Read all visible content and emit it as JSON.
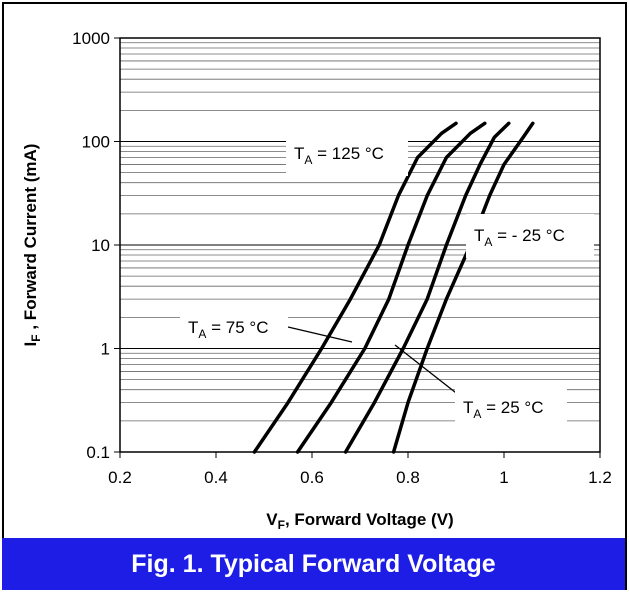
{
  "caption": "Fig. 1.  Typical Forward Voltage",
  "chart_data": {
    "type": "line",
    "title": "",
    "xlabel": {
      "main": "V",
      "sub": "F",
      "rest": ", Forward Voltage (V)"
    },
    "ylabel": {
      "main": "I",
      "sub": "F",
      "rest": " , Forward Current (mA)"
    },
    "xlim": [
      0.2,
      1.2
    ],
    "ylim": [
      0.1,
      1000
    ],
    "yscale": "log",
    "grid": "horizontal",
    "x_ticks": [
      "0.2",
      "0.4",
      "0.6",
      "0.8",
      "1",
      "1.2"
    ],
    "y_ticks": [
      "0.1",
      "1",
      "10",
      "100",
      "1000"
    ],
    "series": [
      {
        "name": "TA = 125 °C",
        "x": [
          0.48,
          0.55,
          0.62,
          0.68,
          0.74,
          0.78,
          0.82,
          0.87,
          0.9
        ],
        "y": [
          0.1,
          0.3,
          1,
          3,
          10,
          30,
          70,
          120,
          150
        ]
      },
      {
        "name": "TA = 75 °C",
        "x": [
          0.57,
          0.64,
          0.71,
          0.76,
          0.8,
          0.84,
          0.88,
          0.93,
          0.96
        ],
        "y": [
          0.1,
          0.3,
          1,
          3,
          10,
          30,
          70,
          120,
          150
        ]
      },
      {
        "name": "TA = 25 °C",
        "x": [
          0.67,
          0.73,
          0.79,
          0.84,
          0.88,
          0.92,
          0.95,
          0.98,
          1.01
        ],
        "y": [
          0.1,
          0.3,
          1,
          3,
          10,
          30,
          60,
          110,
          150
        ]
      },
      {
        "name": "TA = - 25 °C",
        "x": [
          0.77,
          0.8,
          0.84,
          0.88,
          0.93,
          0.97,
          1.0,
          1.04,
          1.06
        ],
        "y": [
          0.1,
          0.3,
          1,
          3,
          10,
          30,
          60,
          110,
          150
        ]
      }
    ],
    "annotations": [
      {
        "series": 0,
        "main": "T",
        "sub": "A",
        "rest": " = 125 °C"
      },
      {
        "series": 3,
        "main": "T",
        "sub": "A",
        "rest": " = - 25 °C"
      },
      {
        "series": 1,
        "main": "T",
        "sub": "A",
        "rest": " = 75 °C"
      },
      {
        "series": 2,
        "main": "T",
        "sub": "A",
        "rest": " = 25 °C"
      }
    ]
  }
}
